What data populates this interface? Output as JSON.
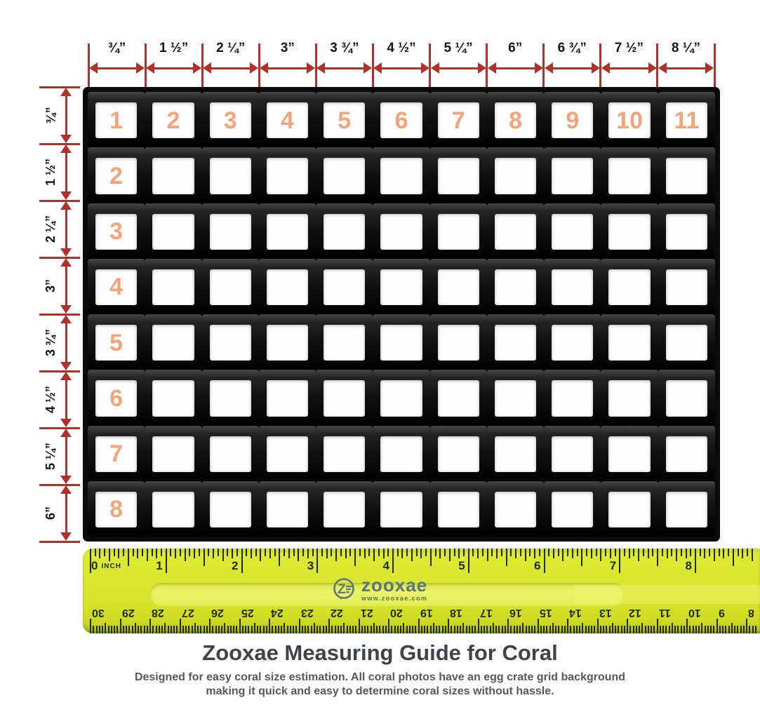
{
  "title": "Zooxae Measuring Guide for Coral",
  "subtitle": {
    "line1": "Designed for easy coral size estimation. All coral photos have an egg crate grid background",
    "line2": "making it quick and easy to determine coral sizes without hassle."
  },
  "colors": {
    "dimension_red": "#b1302a",
    "cell_number_orange": "#f3a47b",
    "grid_black": "#0a0a0a",
    "ruler_yellow": "#d8e62d",
    "ruler_ink": "#222d07",
    "logo_slate": "#5e7383",
    "title_gray": "#3e4347",
    "subtitle_gray": "#55595c"
  },
  "top_dimensions": {
    "labels": [
      "¾”",
      "1 ½”",
      "2 ¼”",
      "3”",
      "3 ¾”",
      "4 ½”",
      "5 ¼”",
      "6”",
      "6 ¾”",
      "7 ½”",
      "8 ¼”"
    ]
  },
  "left_dimensions": {
    "labels": [
      "¾”",
      "1 ½”",
      "2 ¼”",
      "3”",
      "3 ¾”",
      "4 ½”",
      "5 ¼”",
      "6”"
    ]
  },
  "grid": {
    "columns": 11,
    "rows": 8,
    "column_numbers": [
      "1",
      "2",
      "3",
      "4",
      "5",
      "6",
      "7",
      "8",
      "9",
      "10",
      "11"
    ],
    "row_numbers": [
      "2",
      "3",
      "4",
      "5",
      "6",
      "7",
      "8"
    ]
  },
  "ruler": {
    "zero_label": "0",
    "unit_label": "INCH",
    "inch_numbers": [
      1,
      2,
      3,
      4,
      5,
      6,
      7,
      8
    ],
    "cm_numbers": [
      30,
      29,
      28,
      27,
      26,
      25,
      24,
      23,
      22,
      21,
      20,
      19,
      18,
      17,
      16,
      15,
      14,
      13,
      12,
      11,
      10,
      9,
      8
    ],
    "logo": {
      "letter": "Z",
      "name": "zooxae",
      "url": "www.zooxae.com"
    }
  }
}
